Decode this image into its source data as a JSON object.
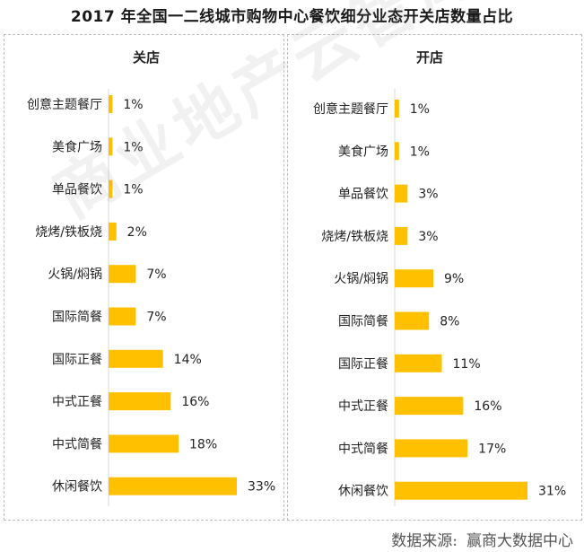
{
  "title": "2017 年全国一二线城市购物中心餐饮细分业态开关店数量占比",
  "watermark": "商业地产云智库",
  "source": {
    "label": "数据来源:",
    "name": "赢商大数据中心"
  },
  "colors": {
    "bar": "#FFC000",
    "text": "#222222"
  },
  "chart_data": [
    {
      "type": "bar",
      "orientation": "horizontal",
      "title": "关店",
      "categories": [
        "创意主题餐厅",
        "美食广场",
        "单品餐饮",
        "烧烤/铁板烧",
        "火锅/焖锅",
        "国际简餐",
        "国际正餐",
        "中式正餐",
        "中式简餐",
        "休闲餐饮"
      ],
      "values": [
        1,
        1,
        1,
        2,
        7,
        7,
        14,
        16,
        18,
        33
      ],
      "data_labels": [
        "1%",
        "1%",
        "1%",
        "2%",
        "7%",
        "7%",
        "14%",
        "16%",
        "18%",
        "33%"
      ],
      "xlim": [
        0,
        33
      ],
      "grid": false,
      "legend": "none"
    },
    {
      "type": "bar",
      "orientation": "horizontal",
      "title": "开店",
      "categories": [
        "创意主题餐厅",
        "美食广场",
        "单品餐饮",
        "烧烤/铁板烧",
        "火锅/焖锅",
        "国际简餐",
        "国际正餐",
        "中式正餐",
        "中式简餐",
        "休闲餐饮"
      ],
      "values": [
        1,
        1,
        3,
        3,
        9,
        8,
        11,
        16,
        17,
        31
      ],
      "data_labels": [
        "1%",
        "1%",
        "3%",
        "3%",
        "9%",
        "8%",
        "11%",
        "16%",
        "17%",
        "31%"
      ],
      "xlim": [
        0,
        31
      ],
      "grid": false,
      "legend": "none"
    }
  ]
}
